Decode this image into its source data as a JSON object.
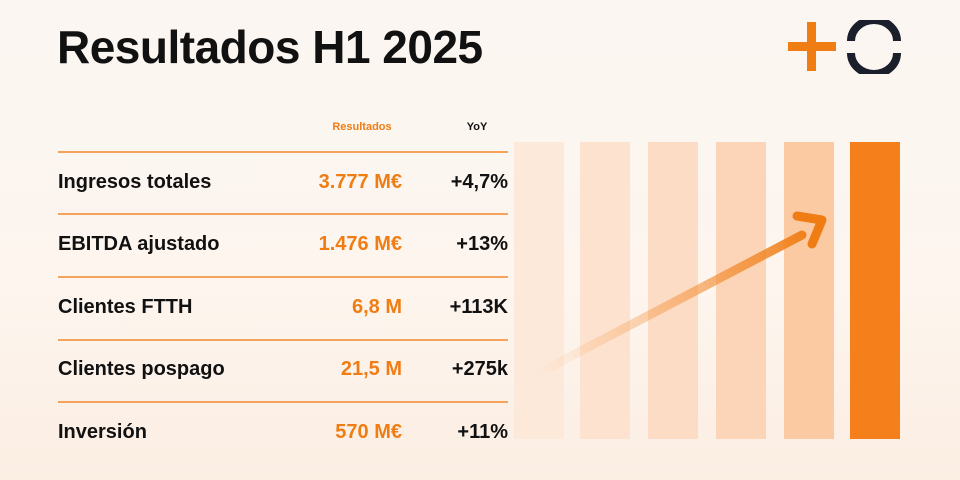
{
  "title": "Resultados H1 2025",
  "colors": {
    "accent": "#f07d14",
    "text": "#111111",
    "logo_dark": "#1b1e2b"
  },
  "table": {
    "header_results": "Resultados",
    "header_yoy": "YoY",
    "rows": [
      {
        "label": "Ingresos totales",
        "value": "3.777 M€",
        "yoy": "+4,7%"
      },
      {
        "label": "EBITDA ajustado",
        "value": "1.476 M€",
        "yoy": "+13%"
      },
      {
        "label": "Clientes FTTH",
        "value": "6,8 M",
        "yoy": "+113K"
      },
      {
        "label": "Clientes pospago",
        "value": "21,5 M",
        "yoy": "+275k"
      },
      {
        "label": "Inversión",
        "value": "570 M€",
        "yoy": "+11%"
      }
    ]
  },
  "icons": [
    "plus-icon",
    "ring-icon",
    "growth-arrow-icon"
  ]
}
